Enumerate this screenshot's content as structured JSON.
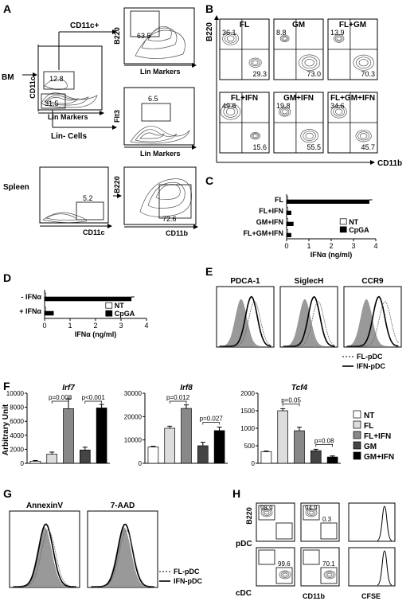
{
  "panels": {
    "A": {
      "label": "A",
      "bm": "BM",
      "spleen": "Spleen",
      "cd11c_pos": "CD11c+",
      "lin_neg": "Lin- Cells",
      "gate_12_8": "12.8",
      "gate_31_5": "31.5",
      "gate_63_5": "63.5",
      "gate_6_5": "6.5",
      "gate_5_2": "5.2",
      "gate_72_6": "72.6",
      "x_lin": "Lin Markers",
      "y_cd11c": "CD11c",
      "y_b220": "B220",
      "y_flt3": "Flt3",
      "x_cd11c": "CD11c",
      "x_cd11b": "CD11b"
    },
    "B": {
      "label": "B",
      "y_label": "B220",
      "x_label": "CD11b",
      "plots": [
        {
          "title": "FL",
          "tl": "36.1",
          "br": "29.3"
        },
        {
          "title": "GM",
          "tl": "8.8",
          "br": "73.0"
        },
        {
          "title": "FL+GM",
          "tl": "13.9",
          "br": "70.3"
        },
        {
          "title": "FL+IFN",
          "tl": "49.6",
          "br": "15.6"
        },
        {
          "title": "GM+IFN",
          "tl": "19.8",
          "br": "55.5"
        },
        {
          "title": "FL+GM+IFN",
          "tl": "34.6",
          "br": "45.7"
        }
      ]
    },
    "C": {
      "label": "C"
    },
    "D": {
      "label": "D"
    },
    "E": {
      "label": "E",
      "titles": [
        "PDCA-1",
        "SiglecH",
        "CCR9"
      ],
      "legend": [
        "FL-pDC",
        "IFN-pDC"
      ]
    },
    "F": {
      "label": "F"
    },
    "G": {
      "label": "G",
      "titles": [
        "AnnexinV",
        "7-AAD"
      ],
      "legend": [
        "FL-pDC",
        "IFN-pDC"
      ]
    },
    "H": {
      "label": "H",
      "rows": [
        "pDC",
        "cDC"
      ],
      "y_label": "B220",
      "x_cd11b": "CD11b",
      "x_cfse": "CFSE",
      "vals": [
        "98.9",
        "94.9",
        "0.3",
        "99.6",
        "70.1"
      ]
    }
  },
  "chart_data": [
    {
      "panel": "C",
      "type": "bar",
      "orientation": "horizontal",
      "categories": [
        "FL",
        "FL+IFN",
        "GM+IFN",
        "FL+GM+IFN"
      ],
      "series": [
        {
          "name": "NT",
          "values": [
            0.05,
            0.05,
            0.05,
            0.05
          ],
          "color": "#ffffff"
        },
        {
          "name": "CpGA",
          "values": [
            3.7,
            0.2,
            0.3,
            0.2
          ],
          "color": "#000000"
        }
      ],
      "xlabel": "IFNα (ng/ml)",
      "xlim": [
        0,
        4
      ],
      "xticks": [
        0,
        1,
        2,
        3,
        4
      ],
      "legend": "right"
    },
    {
      "panel": "D",
      "type": "bar",
      "orientation": "horizontal",
      "categories": [
        "- IFNα",
        "+ IFNα"
      ],
      "series": [
        {
          "name": "NT",
          "values": [
            0.05,
            0.05
          ],
          "color": "#ffffff"
        },
        {
          "name": "CpGA",
          "values": [
            3.4,
            0.35
          ],
          "color": "#000000"
        }
      ],
      "xlabel": "IFNα (ng/ml)",
      "xlim": [
        0,
        4
      ],
      "xticks": [
        0,
        1,
        2,
        3,
        4
      ],
      "legend": "right"
    },
    {
      "panel": "F",
      "type": "bar",
      "ylabel": "Arbitrary Unit",
      "legend_entries": [
        {
          "name": "NT",
          "color": "#ffffff"
        },
        {
          "name": "FL",
          "color": "#dddddd"
        },
        {
          "name": "FL+IFN",
          "color": "#888888"
        },
        {
          "name": "GM",
          "color": "#444444"
        },
        {
          "name": "GM+IFN",
          "color": "#000000"
        }
      ],
      "subplots": [
        {
          "title": "Irf7",
          "ylim": [
            0,
            10000
          ],
          "yticks": [
            "0",
            "2000",
            "4000",
            "6000",
            "8000",
            "10000"
          ],
          "values": [
            300,
            1300,
            7800,
            1900,
            7900
          ],
          "errors": [
            100,
            300,
            1400,
            400,
            500
          ],
          "pvals": [
            {
              "text": "p=0.008",
              "from": 1,
              "to": 2
            },
            {
              "text": "p<0.001",
              "from": 3,
              "to": 4
            }
          ]
        },
        {
          "title": "Irf8",
          "ylim": [
            0,
            30000
          ],
          "yticks": [
            "0",
            "10000",
            "20000",
            "30000"
          ],
          "values": [
            7000,
            15000,
            23500,
            7500,
            14000
          ],
          "errors": [
            300,
            900,
            1500,
            1500,
            1500
          ],
          "pvals": [
            {
              "text": "p=0.012",
              "from": 1,
              "to": 2
            },
            {
              "text": "p=0.027",
              "from": 3,
              "to": 4
            }
          ]
        },
        {
          "title": "Tcf4",
          "ylim": [
            0,
            2000
          ],
          "yticks": [
            "0",
            "500",
            "1000",
            "1500",
            "2000"
          ],
          "values": [
            330,
            1500,
            930,
            360,
            180
          ],
          "errors": [
            20,
            60,
            100,
            40,
            30
          ],
          "pvals": [
            {
              "text": "p=0.05",
              "from": 1,
              "to": 2
            },
            {
              "text": "p=0.08",
              "from": 3,
              "to": 4
            }
          ]
        }
      ]
    }
  ]
}
